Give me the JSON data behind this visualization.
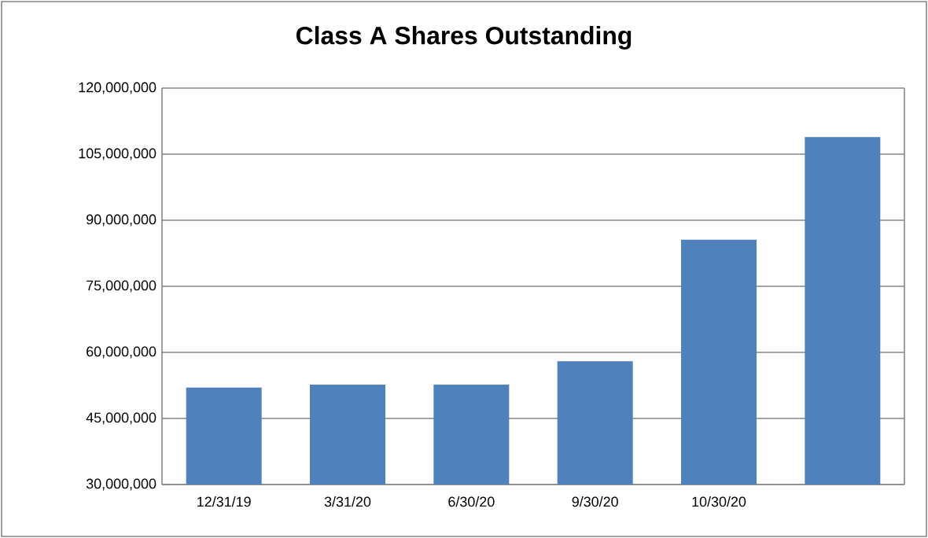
{
  "chart_data": {
    "type": "bar",
    "title": "Class A Shares Outstanding",
    "categories": [
      "12/31/19",
      "3/31/20",
      "6/30/20",
      "9/30/20",
      "10/30/20",
      null
    ],
    "values": [
      52000000,
      52700000,
      52700000,
      58000000,
      85600000,
      108900000
    ],
    "color": "#4f81bd",
    "ylim": [
      30000000,
      120000000
    ],
    "yticks": [
      {
        "value": 30000000,
        "label": "30,000,000"
      },
      {
        "value": 45000000,
        "label": "45,000,000"
      },
      {
        "value": 60000000,
        "label": "60,000,000"
      },
      {
        "value": 75000000,
        "label": "75,000,000"
      },
      {
        "value": 90000000,
        "label": "90,000,000"
      },
      {
        "value": 105000000,
        "label": "105,000,000"
      },
      {
        "value": 120000000,
        "label": "120,000,000"
      }
    ],
    "grid": "y"
  }
}
